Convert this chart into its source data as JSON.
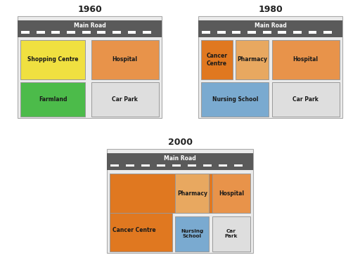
{
  "title_1960": "1960",
  "title_1980": "1980",
  "title_2000": "2000",
  "road_label": "Main Road",
  "road_color": "#5a5a5a",
  "road_text_color": "#ffffff",
  "dash_color": "#ffffff",
  "bg_color": "#ebebeb",
  "border_color": "#aaaaaa",
  "colors": {
    "shopping_centre": "#f0e040",
    "hospital": "#e8934a",
    "farmland": "#4cbb4a",
    "car_park": "#dedede",
    "cancer_centre": "#e07820",
    "pharmacy": "#e8a860",
    "nursing_school": "#7aaad0"
  },
  "panel_bg": "#f5f5f5"
}
